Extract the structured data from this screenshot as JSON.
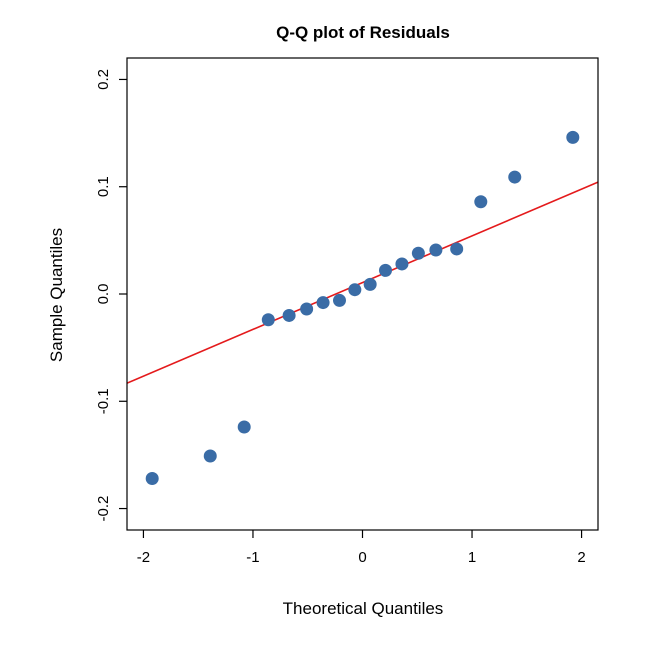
{
  "chart_data": {
    "type": "scatter",
    "title": "Q-Q plot of Residuals",
    "xlabel": "Theoretical Quantiles",
    "ylabel": "Sample Quantiles",
    "xlim": [
      -2.15,
      2.15
    ],
    "ylim": [
      -0.22,
      0.22
    ],
    "x_ticks": [
      -2,
      -1,
      0,
      1,
      2
    ],
    "x_tick_labels": [
      "-2",
      "-1",
      "0",
      "1",
      "2"
    ],
    "y_ticks": [
      -0.2,
      -0.1,
      0.0,
      0.1,
      0.2
    ],
    "y_tick_labels": [
      "-0.2",
      "-0.1",
      "0.0",
      "0.1",
      "0.2"
    ],
    "grid": false,
    "colors": {
      "points": "#3a6ca6",
      "reference_line": "#e41a1c",
      "axes": "#000000"
    },
    "series": [
      {
        "points": [
          {
            "x": -1.92,
            "y": -0.172
          },
          {
            "x": -1.39,
            "y": -0.151
          },
          {
            "x": -1.08,
            "y": -0.124
          },
          {
            "x": -0.86,
            "y": -0.024
          },
          {
            "x": -0.67,
            "y": -0.02
          },
          {
            "x": -0.51,
            "y": -0.014
          },
          {
            "x": -0.36,
            "y": -0.008
          },
          {
            "x": -0.21,
            "y": -0.006
          },
          {
            "x": -0.07,
            "y": 0.004
          },
          {
            "x": 0.07,
            "y": 0.009
          },
          {
            "x": 0.21,
            "y": 0.022
          },
          {
            "x": 0.36,
            "y": 0.028
          },
          {
            "x": 0.51,
            "y": 0.038
          },
          {
            "x": 0.67,
            "y": 0.041
          },
          {
            "x": 0.86,
            "y": 0.042
          },
          {
            "x": 1.08,
            "y": 0.086
          },
          {
            "x": 1.39,
            "y": 0.109
          },
          {
            "x": 1.92,
            "y": 0.146
          }
        ]
      }
    ],
    "reference_line": {
      "intercept": 0.0106,
      "slope": 0.0436
    }
  }
}
